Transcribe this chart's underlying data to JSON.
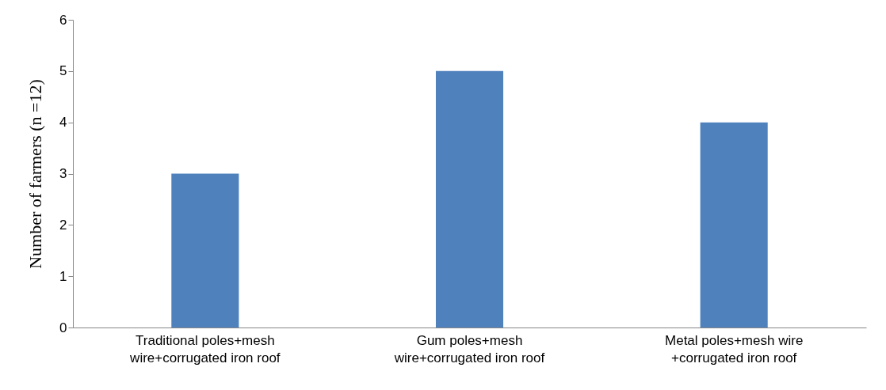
{
  "chart_data": {
    "type": "bar",
    "ylabel": "Number of farmers (n =12)",
    "categories": [
      "Traditional poles+mesh wire+corrugated iron roof",
      "Gum poles+mesh wire+corrugated iron roof",
      "Metal poles+mesh wire +corrugated iron roof"
    ],
    "values": [
      3,
      5,
      4
    ],
    "color": "#4f81bd",
    "ylim": [
      0,
      6
    ],
    "yticks": [
      0,
      1,
      2,
      3,
      4,
      5,
      6
    ],
    "grid": false
  }
}
